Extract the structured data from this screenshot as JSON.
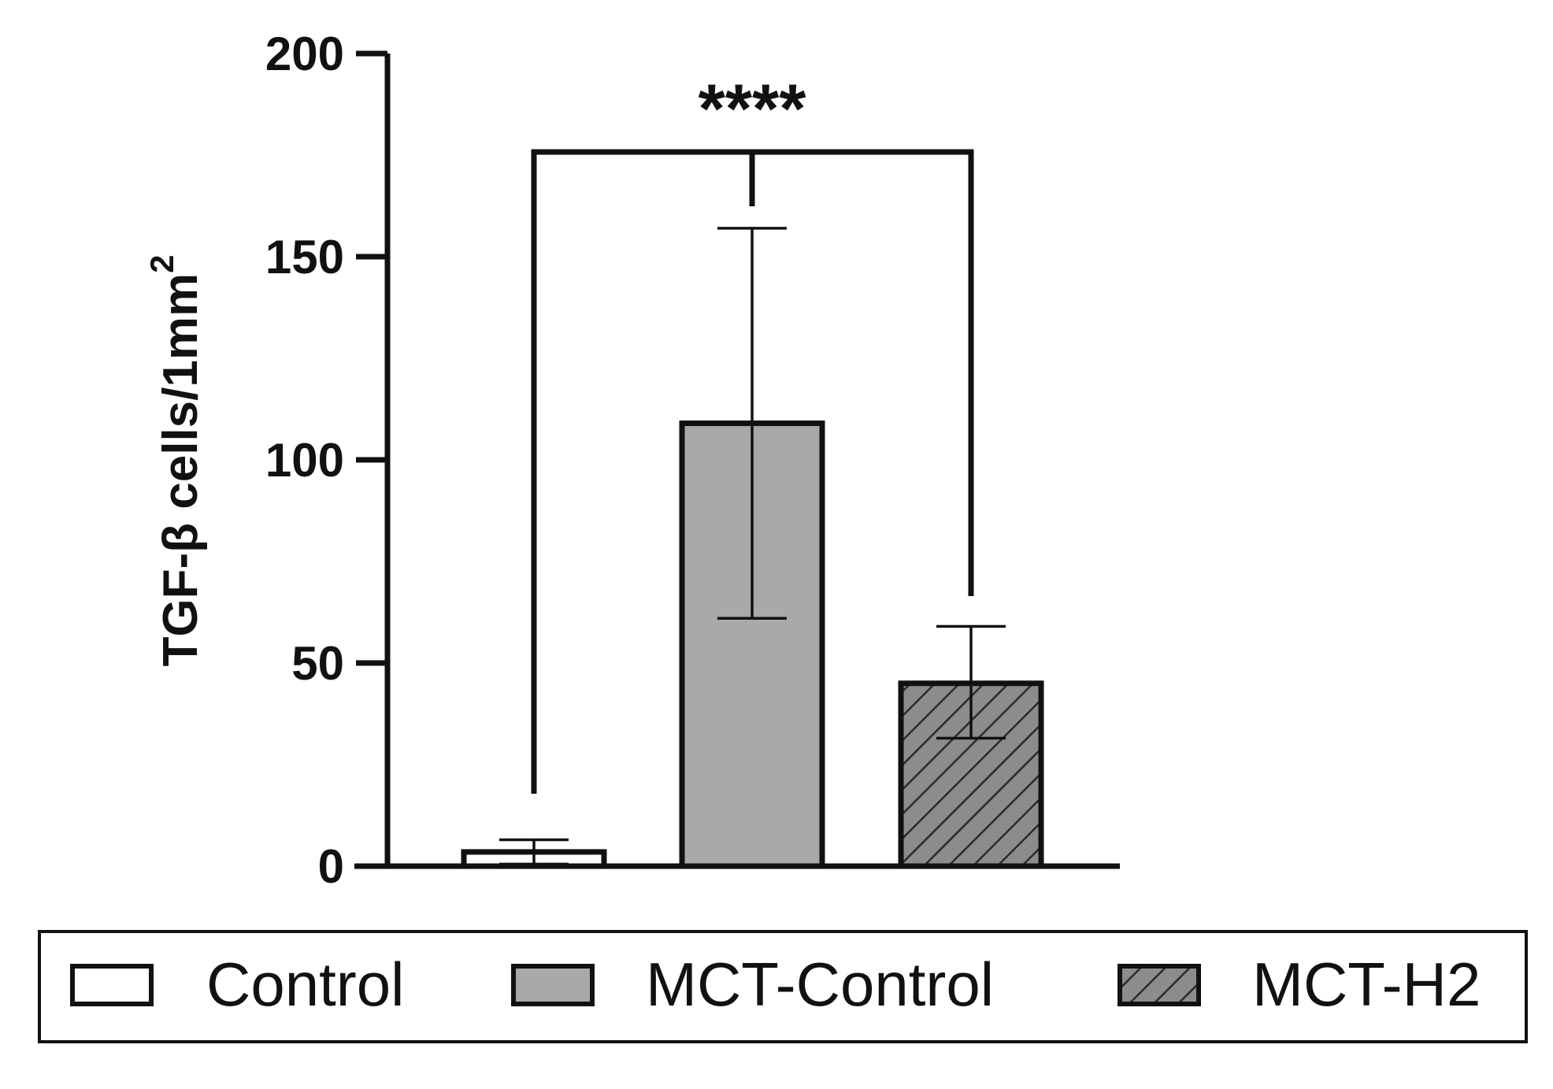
{
  "chart_data": {
    "type": "bar",
    "title": "",
    "xlabel": "",
    "ylabel": "TGF-β cells/1mm",
    "ylabel_superscript": "2",
    "ylim": [
      0,
      200
    ],
    "yticks": [
      0,
      50,
      100,
      150,
      200
    ],
    "grid": false,
    "legend_position": "bottom",
    "categories": [
      "Control",
      "MCT-Control",
      "MCT-H2"
    ],
    "values": [
      3.5,
      109,
      45
    ],
    "error_upper": [
      6.5,
      157,
      59
    ],
    "error_lower": [
      0.5,
      61,
      31.5
    ],
    "colors": [
      "#ffffff",
      "#a9a9a9",
      "#8c8c8c"
    ],
    "patterns": [
      "none",
      "none",
      "hatch"
    ],
    "significance": {
      "label": "****",
      "from_category": "Control",
      "to_category": "MCT-H2"
    }
  }
}
